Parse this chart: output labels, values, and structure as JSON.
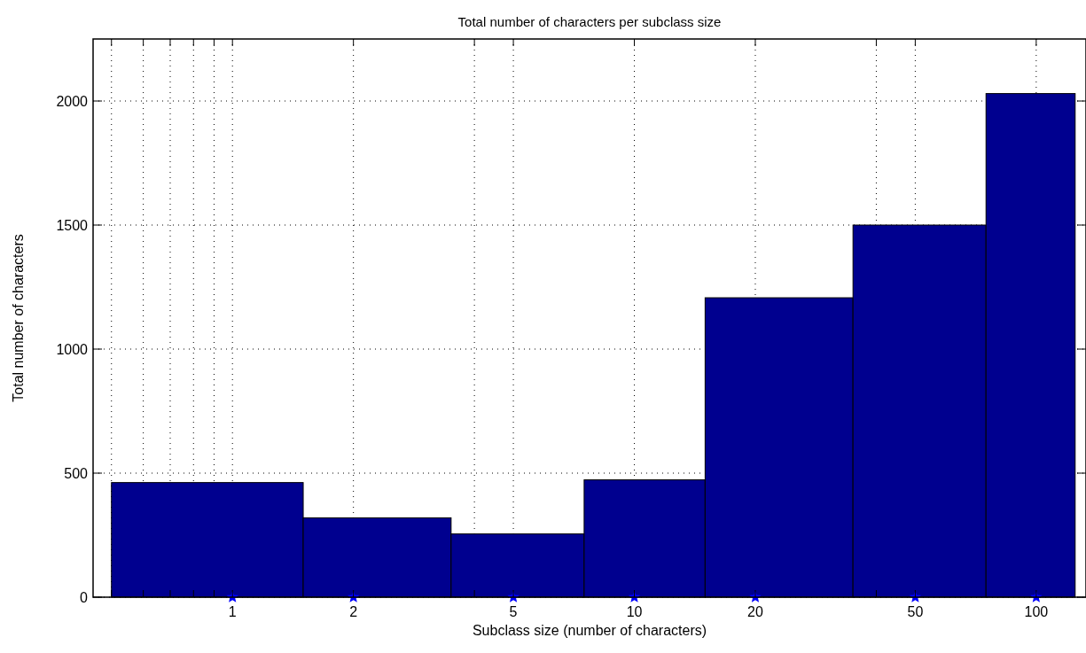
{
  "chart_data": {
    "type": "histogram",
    "title": "Total number of characters per subclass size",
    "xlabel": "Subclass size (number of characters)",
    "ylabel": "Total number of characters",
    "bins": [
      0.5,
      1.5,
      3.5,
      7.5,
      15,
      35,
      75,
      125
    ],
    "values": [
      462,
      320,
      255,
      473,
      1207,
      1500,
      2030
    ],
    "color": "#00008f",
    "series": [
      {
        "type": "scatter",
        "x": [
          1,
          2,
          5,
          10,
          20,
          50,
          100
        ],
        "values": [
          0,
          0,
          0,
          0,
          0,
          0,
          0
        ],
        "color": "#0000ff",
        "marker": "star"
      }
    ],
    "log": "x",
    "xlim": [
      0.45,
      133
    ],
    "ylim": [
      0,
      2250
    ],
    "xticks": [
      {
        "value": 0.5,
        "label": null
      },
      {
        "value": 0.6,
        "label": null
      },
      {
        "value": 0.7,
        "label": null
      },
      {
        "value": 0.8,
        "label": null
      },
      {
        "value": 0.9,
        "label": null
      },
      1,
      2,
      {
        "value": 4,
        "label": null
      },
      5,
      10,
      20,
      {
        "value": 40,
        "label": null
      },
      50,
      100
    ],
    "yticks": [
      0,
      500,
      1000,
      1500,
      2000
    ],
    "grid": true
  }
}
